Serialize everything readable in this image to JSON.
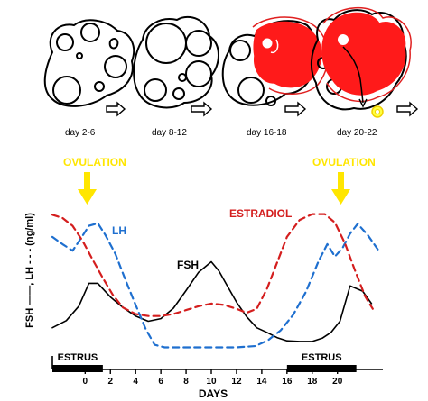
{
  "stages": [
    {
      "label": "day 2-6"
    },
    {
      "label": "day 8-12"
    },
    {
      "label": "day 16-18"
    },
    {
      "label": "day 20-22"
    }
  ],
  "chart_data": {
    "type": "line",
    "xlabel": "DAYS",
    "ylabel": "FSH ——, LH - - - (ng/ml)",
    "x_ticks": [
      "0",
      "2",
      "4",
      "6",
      "8",
      "10",
      "12",
      "14",
      "16",
      "18",
      "20"
    ],
    "series": [
      {
        "name": "FSH",
        "style": "solid",
        "color": "#000000",
        "x": [
          -2.6,
          -1.5,
          -0.5,
          0.3,
          1.0,
          2.0,
          3.0,
          4.0,
          5.0,
          6.0,
          7.0,
          8.0,
          9.0,
          10.0,
          10.6,
          11.3,
          12.0,
          12.8,
          13.6,
          14.4,
          15.2,
          16.0,
          17.0,
          18.0,
          18.8,
          19.5,
          20.2,
          21.0,
          22.0,
          22.7
        ],
        "y": [
          3.9,
          5.0,
          7.2,
          10.7,
          10.7,
          8.6,
          7.0,
          5.7,
          4.9,
          5.3,
          6.9,
          9.6,
          12.4,
          14.0,
          12.6,
          10.2,
          7.8,
          5.6,
          3.9,
          3.2,
          2.4,
          1.9,
          1.8,
          1.8,
          2.3,
          3.2,
          4.9,
          10.3,
          9.5,
          7.6
        ]
      },
      {
        "name": "LH",
        "style": "dashed",
        "color": "#1e6fcf",
        "x": [
          -2.6,
          -1.8,
          -1.0,
          -0.4,
          0.3,
          1.0,
          1.6,
          2.4,
          3.2,
          4.0,
          4.8,
          5.5,
          6.3,
          7.0,
          8.0,
          10.0,
          12.0,
          13.5,
          14.5,
          15.5,
          16.5,
          17.5,
          18.5,
          19.2,
          19.8,
          20.4,
          21.0,
          21.6,
          22.4,
          23.2
        ],
        "y": [
          17.8,
          16.7,
          15.7,
          17.4,
          19.5,
          19.9,
          18.1,
          15.2,
          11.2,
          7.4,
          3.7,
          1.3,
          0.9,
          0.9,
          0.9,
          0.9,
          0.9,
          1.1,
          2.0,
          3.5,
          5.9,
          9.4,
          14.1,
          16.7,
          14.8,
          16.1,
          18.3,
          19.8,
          18.1,
          15.9
        ]
      },
      {
        "name": "ESTRADIOL",
        "style": "dashed",
        "color": "#d41e1e",
        "x": [
          -2.6,
          -1.8,
          -1.0,
          -0.2,
          0.6,
          1.4,
          2.2,
          3.0,
          4.0,
          5.0,
          6.0,
          7.0,
          8.0,
          9.0,
          10.0,
          11.0,
          12.0,
          12.8,
          13.6,
          14.4,
          15.2,
          16.0,
          17.0,
          18.0,
          19.0,
          19.8,
          20.6,
          21.4,
          22.2,
          22.8
        ],
        "y": [
          21.2,
          20.7,
          19.5,
          17.2,
          14.3,
          11.5,
          8.9,
          7.0,
          6.0,
          5.7,
          5.7,
          6.0,
          6.6,
          7.2,
          7.6,
          7.4,
          6.8,
          6.2,
          6.8,
          9.8,
          13.8,
          17.8,
          20.4,
          21.3,
          21.3,
          20.0,
          16.8,
          12.6,
          8.7,
          6.8
        ]
      }
    ],
    "annotations": [
      {
        "text": "OVULATION",
        "color": "#ffe600"
      },
      {
        "text": "OVULATION",
        "color": "#ffe600"
      },
      {
        "text": "LH",
        "color": "#1e6fcf"
      },
      {
        "text": "FSH",
        "color": "#000000"
      },
      {
        "text": "ESTRADIOL",
        "color": "#d41e1e"
      }
    ],
    "bars": [
      {
        "label": "ESTRUS",
        "x": [
          -2.6,
          1.4
        ]
      },
      {
        "label": "ESTRUS",
        "x": [
          16.0,
          21.5
        ]
      }
    ],
    "xlim": [
      -2.6,
      23.6
    ],
    "ylim": [
      0,
      24
    ],
    "grid": false
  }
}
